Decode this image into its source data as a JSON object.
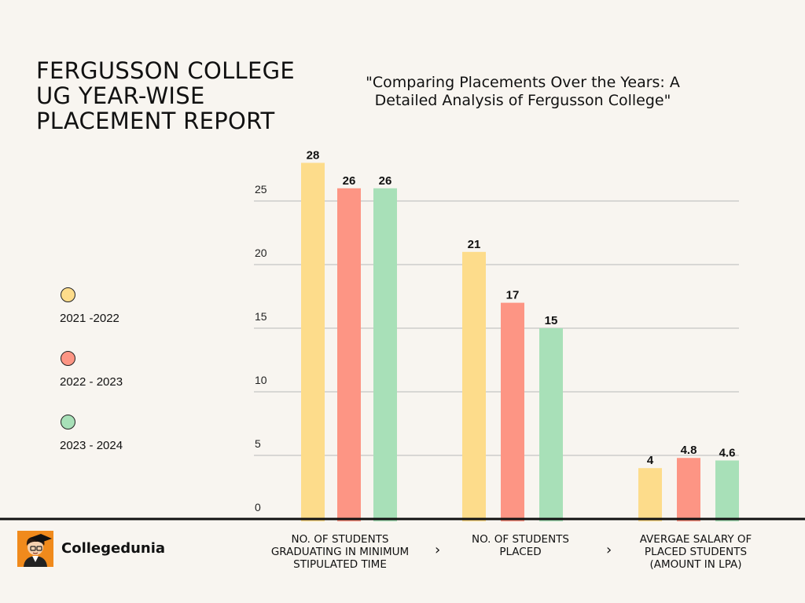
{
  "header": {
    "title_lines": [
      "FERGUSSON COLLEGE",
      "UG YEAR-WISE",
      "PLACEMENT REPORT"
    ],
    "subtitle_lines": [
      "\"Comparing Placements Over the Years: A",
      "Detailed Analysis of Fergusson College\""
    ]
  },
  "legend": [
    {
      "label": "2021 -2022",
      "color": "#fddc8b"
    },
    {
      "label": "2022 - 2023",
      "color": "#fd9584"
    },
    {
      "label": "2023 - 2024",
      "color": "#a8e0b8"
    }
  ],
  "brand": {
    "name": "Collegedunia",
    "color": "#f08a1c"
  },
  "category_labels": [
    [
      "NO. OF STUDENTS",
      "GRADUATING IN MINIMUM",
      "STIPULATED TIME"
    ],
    [
      "NO. OF STUDENTS",
      "PLACED"
    ],
    [
      "AVERGAE SALARY OF",
      "PLACED STUDENTS",
      "(AMOUNT IN LPA)"
    ]
  ],
  "separator_glyph": "›",
  "chart_data": {
    "type": "bar",
    "title": "FERGUSSON COLLEGE UG YEAR-WISE PLACEMENT REPORT",
    "categories": [
      "NO. OF STUDENTS GRADUATING IN MINIMUM STIPULATED TIME",
      "NO. OF STUDENTS PLACED",
      "AVERGAE SALARY OF PLACED STUDENTS (AMOUNT IN LPA)"
    ],
    "series": [
      {
        "name": "2021 -2022",
        "color": "#fddc8b",
        "values": [
          28,
          21,
          4
        ],
        "labels": [
          "28",
          "21",
          "4"
        ]
      },
      {
        "name": "2022 - 2023",
        "color": "#fd9584",
        "values": [
          26,
          17,
          4.8
        ],
        "labels": [
          "26",
          "17",
          "4.8"
        ]
      },
      {
        "name": "2023 - 2024",
        "color": "#a8e0b8",
        "values": [
          26,
          15,
          4.6
        ],
        "labels": [
          "26",
          "15",
          "4.6"
        ]
      }
    ],
    "y_ticks": [
      0,
      5,
      10,
      15,
      20,
      25
    ],
    "ylim": [
      0,
      28
    ],
    "grid": true,
    "legend_position": "left"
  }
}
